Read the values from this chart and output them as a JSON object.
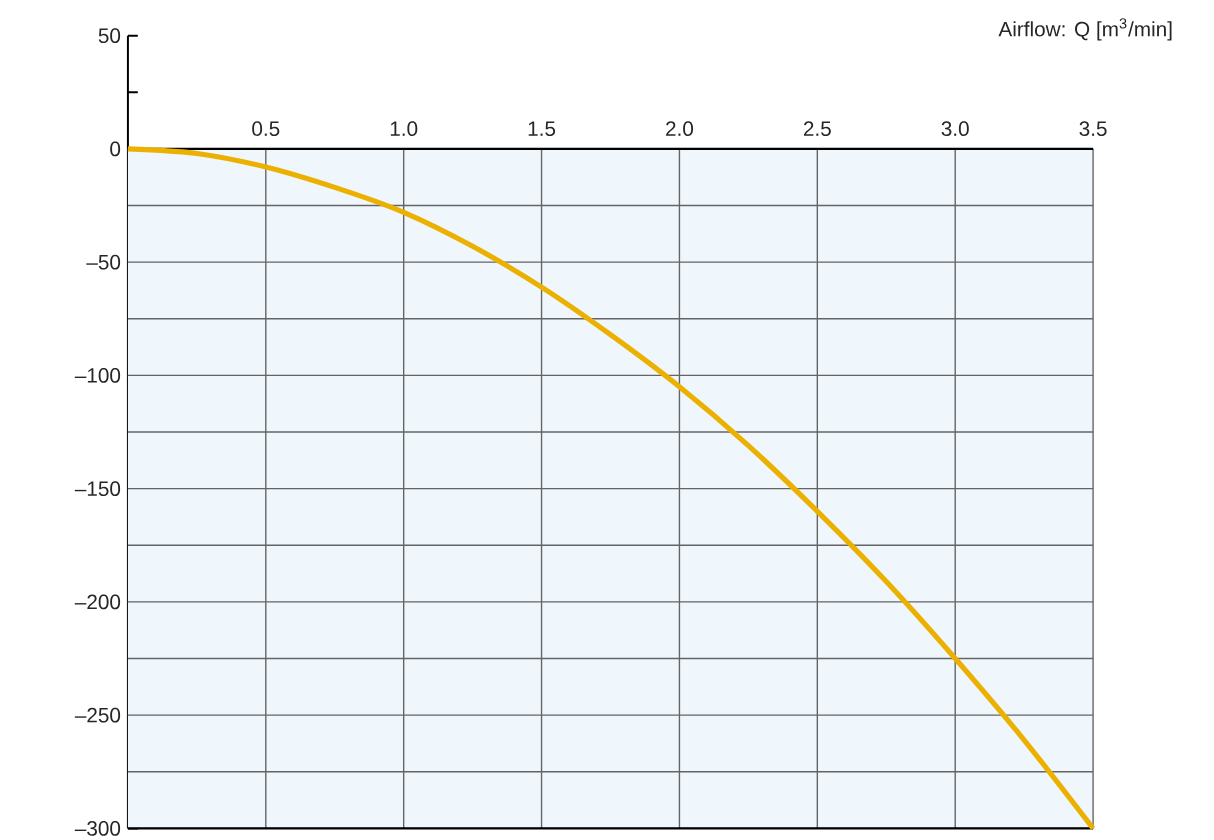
{
  "chart_data": {
    "type": "line",
    "xlabel": "Airflow: Q [m$^{3}$/min]",
    "x": [
      0,
      0.25,
      0.5,
      0.75,
      1.0,
      1.25,
      1.5,
      1.75,
      2.0,
      2.25,
      2.5,
      2.75,
      3.0,
      3.25,
      3.5
    ],
    "series": [
      {
        "color": "#ebb000",
        "values": [
          0,
          -2,
          -8,
          -17,
          -28,
          -43,
          -61,
          -82,
          -105,
          -131,
          -160,
          -191,
          -225,
          -261,
          -300
        ]
      }
    ],
    "xlim": [
      0,
      3.5
    ],
    "ylim": [
      -300,
      50
    ],
    "xticks": [
      0.5,
      {
        "value": 1,
        "label": "1.0"
      },
      1.5,
      {
        "value": 2,
        "label": "2.0"
      },
      2.5,
      {
        "value": 3,
        "label": "3.0"
      },
      3.5
    ],
    "yticks": [
      {
        "value": 50,
        "label": "50"
      },
      {
        "value": 25,
        "label": null
      },
      {
        "value": 0,
        "label": "0"
      },
      {
        "value": -50,
        "label": "–50"
      },
      {
        "value": -100,
        "label": "–100"
      },
      {
        "value": -150,
        "label": "–150"
      },
      {
        "value": -200,
        "label": "–200"
      },
      {
        "value": -250,
        "label": "–250"
      },
      {
        "value": -300,
        "label": "–300"
      }
    ],
    "grid": true,
    "marker": "none",
    "line_style": "solid"
  }
}
